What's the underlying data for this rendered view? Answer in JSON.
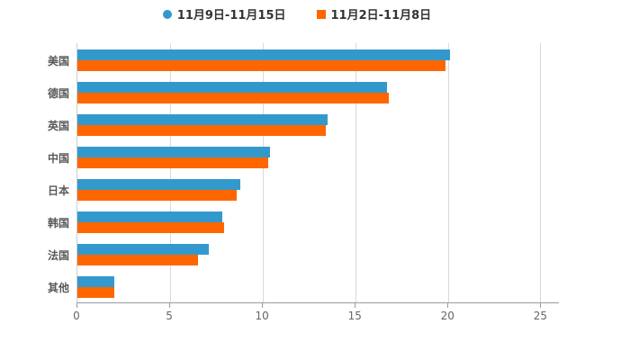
{
  "colors": {
    "series_blue": "#3399cc",
    "series_orange": "#ff6600",
    "grid": "#d9d9d9",
    "axis": "#999999",
    "tick_label": "#666666",
    "category_label": "#595959",
    "legend_text": "#333333",
    "background": "#ffffff"
  },
  "legend": {
    "items": [
      {
        "label": "11月9日-11月15日",
        "color": "#3399cc",
        "shape": "circle"
      },
      {
        "label": "11月2日-11月8日",
        "color": "#ff6600",
        "shape": "square"
      }
    ]
  },
  "chart_data": {
    "type": "bar",
    "orientation": "horizontal",
    "title": "",
    "xlabel": "",
    "ylabel": "",
    "categories": [
      "美国",
      "德国",
      "英国",
      "中国",
      "日本",
      "韩国",
      "法国",
      "其他"
    ],
    "series": [
      {
        "name": "11月9日-11月15日",
        "color": "#3399cc",
        "values": [
          20.1,
          16.7,
          13.5,
          10.4,
          8.8,
          7.8,
          7.1,
          2.0
        ]
      },
      {
        "name": "11月2日-11月8日",
        "color": "#ff6600",
        "values": [
          19.9,
          16.8,
          13.4,
          10.3,
          8.6,
          7.9,
          6.5,
          2.0
        ]
      }
    ],
    "xlim": [
      0,
      26
    ],
    "x_ticks": [
      0,
      5,
      10,
      15,
      20,
      25
    ],
    "grid": true,
    "legend_position": "top"
  }
}
